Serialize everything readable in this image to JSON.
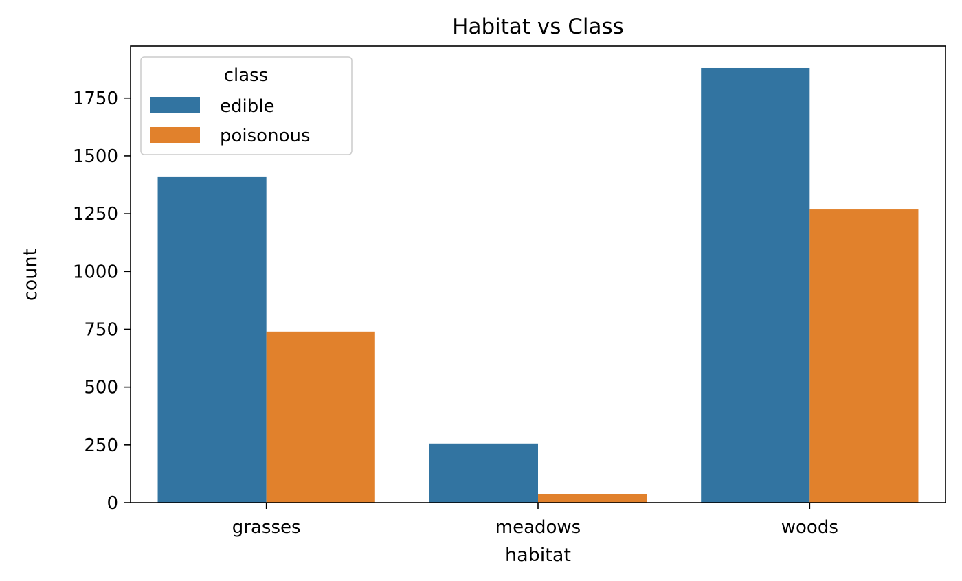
{
  "chart_data": {
    "type": "bar",
    "title": "Habitat vs Class",
    "xlabel": "habitat",
    "ylabel": "count",
    "categories": [
      "grasses",
      "meadows",
      "woods"
    ],
    "series": [
      {
        "name": "edible",
        "color": "#3274a1",
        "values": [
          1408,
          256,
          1880
        ]
      },
      {
        "name": "poisonous",
        "color": "#e1812c",
        "values": [
          740,
          36,
          1268
        ]
      }
    ],
    "ylim": [
      0,
      1975
    ],
    "yticks": [
      0,
      250,
      500,
      750,
      1000,
      1250,
      1500,
      1750
    ],
    "grid": false,
    "legend": {
      "title": "class",
      "placement": "top-left"
    }
  }
}
